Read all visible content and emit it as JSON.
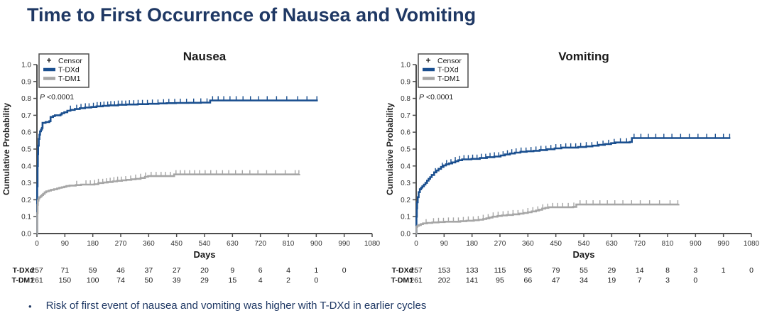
{
  "page": {
    "title": "Time to First Occurrence of Nausea and Vomiting",
    "bullet": "Risk of first event of nausea and vomiting was higher with T-DXd in earlier cycles",
    "colors": {
      "navy": "#1f3864",
      "tdxd_blue": "#1a4f8f",
      "tdm1_gray": "#a6a6a6",
      "axis": "#4d4d4d",
      "text": "#1a1a1a",
      "tick_text": "#333333"
    }
  },
  "chart_data": [
    {
      "type": "line",
      "title": "Nausea",
      "p_value": "P <0.0001",
      "xlabel": "Days",
      "ylabel": "Cumulative Probability",
      "xlim": [
        0,
        1080
      ],
      "ylim": [
        0.0,
        1.0
      ],
      "xticks": [
        0,
        90,
        180,
        270,
        360,
        450,
        540,
        630,
        720,
        810,
        900,
        990,
        1080
      ],
      "yticks": [
        "0.0",
        "0.1",
        "0.2",
        "0.3",
        "0.4",
        "0.5",
        "0.6",
        "0.7",
        "0.8",
        "0.9",
        "1.0"
      ],
      "grid": false,
      "legend_position": "upper-left",
      "legend": [
        {
          "label": "Censor",
          "marker": "+",
          "color": "text"
        },
        {
          "label": "T-DXd",
          "marker": "line",
          "color": "tdxd_blue"
        },
        {
          "label": "T-DM1",
          "marker": "line",
          "color": "tdm1_gray"
        }
      ],
      "series": [
        {
          "name": "T-DXd",
          "color": "tdxd_blue",
          "steps": [
            [
              1,
              0.28
            ],
            [
              2,
              0.4
            ],
            [
              3,
              0.47
            ],
            [
              4,
              0.52
            ],
            [
              6,
              0.56
            ],
            [
              8,
              0.585
            ],
            [
              10,
              0.605
            ],
            [
              13,
              0.615
            ],
            [
              16,
              0.625
            ],
            [
              18,
              0.655
            ],
            [
              28,
              0.66
            ],
            [
              40,
              0.665
            ],
            [
              44,
              0.69
            ],
            [
              52,
              0.695
            ],
            [
              58,
              0.7
            ],
            [
              76,
              0.705
            ],
            [
              80,
              0.712
            ],
            [
              88,
              0.718
            ],
            [
              98,
              0.727
            ],
            [
              108,
              0.732
            ],
            [
              122,
              0.737
            ],
            [
              138,
              0.742
            ],
            [
              155,
              0.746
            ],
            [
              175,
              0.749
            ],
            [
              192,
              0.753
            ],
            [
              212,
              0.756
            ],
            [
              232,
              0.759
            ],
            [
              262,
              0.762
            ],
            [
              288,
              0.764
            ],
            [
              325,
              0.766
            ],
            [
              358,
              0.768
            ],
            [
              392,
              0.77
            ],
            [
              418,
              0.772
            ],
            [
              448,
              0.773
            ],
            [
              488,
              0.774
            ],
            [
              528,
              0.775
            ],
            [
              558,
              0.788
            ],
            [
              905,
              0.788
            ]
          ],
          "censor_days": [
            108,
            128,
            142,
            156,
            168,
            182,
            194,
            205,
            216,
            228,
            238,
            250,
            262,
            274,
            286,
            298,
            312,
            326,
            340,
            356,
            372,
            390,
            408,
            425,
            444,
            462,
            482,
            505,
            528,
            548,
            566,
            584,
            602,
            622,
            642,
            664,
            688,
            714,
            742,
            772,
            805,
            840,
            870,
            902
          ]
        },
        {
          "name": "T-DM1",
          "color": "tdm1_gray",
          "steps": [
            [
              1,
              0.12
            ],
            [
              2,
              0.17
            ],
            [
              3,
              0.195
            ],
            [
              5,
              0.208
            ],
            [
              8,
              0.215
            ],
            [
              12,
              0.221
            ],
            [
              16,
              0.228
            ],
            [
              20,
              0.235
            ],
            [
              25,
              0.244
            ],
            [
              30,
              0.25
            ],
            [
              38,
              0.254
            ],
            [
              45,
              0.259
            ],
            [
              55,
              0.262
            ],
            [
              65,
              0.267
            ],
            [
              72,
              0.271
            ],
            [
              80,
              0.274
            ],
            [
              88,
              0.277
            ],
            [
              95,
              0.281
            ],
            [
              105,
              0.284
            ],
            [
              125,
              0.287
            ],
            [
              142,
              0.29
            ],
            [
              185,
              0.292
            ],
            [
              198,
              0.299
            ],
            [
              214,
              0.302
            ],
            [
              228,
              0.305
            ],
            [
              244,
              0.309
            ],
            [
              258,
              0.312
            ],
            [
              274,
              0.315
            ],
            [
              288,
              0.318
            ],
            [
              304,
              0.321
            ],
            [
              318,
              0.324
            ],
            [
              334,
              0.329
            ],
            [
              348,
              0.336
            ],
            [
              358,
              0.34
            ],
            [
              442,
              0.35
            ],
            [
              845,
              0.353
            ]
          ],
          "censor_days": [
            128,
            158,
            172,
            186,
            198,
            212,
            224,
            236,
            248,
            260,
            272,
            286,
            302,
            318,
            334,
            350,
            368,
            384,
            400,
            414,
            430,
            448,
            462,
            476,
            492,
            508,
            524,
            542,
            560,
            578,
            598,
            618,
            640,
            662,
            686,
            712,
            740,
            768,
            800,
            832,
            844
          ]
        }
      ],
      "number_at_risk": {
        "rows": [
          {
            "label": "T-DXd",
            "values": [
              257,
              71,
              59,
              46,
              37,
              27,
              20,
              9,
              6,
              4,
              1,
              0
            ]
          },
          {
            "label": "T-DM1",
            "values": [
              261,
              150,
              100,
              74,
              50,
              39,
              29,
              15,
              4,
              2,
              0
            ]
          }
        ]
      }
    },
    {
      "type": "line",
      "title": "Vomiting",
      "p_value": "P <0.0001",
      "xlabel": "Days",
      "ylabel": "Cumulative Probability",
      "xlim": [
        0,
        1080
      ],
      "ylim": [
        0.0,
        1.0
      ],
      "xticks": [
        0,
        90,
        180,
        270,
        360,
        450,
        540,
        630,
        720,
        810,
        900,
        990,
        1080
      ],
      "yticks": [
        "0.0",
        "0.1",
        "0.2",
        "0.3",
        "0.4",
        "0.5",
        "0.6",
        "0.7",
        "0.8",
        "0.9",
        "1.0"
      ],
      "grid": false,
      "legend_position": "upper-left",
      "legend": [
        {
          "label": "Censor",
          "marker": "+",
          "color": "text"
        },
        {
          "label": "T-DXd",
          "marker": "line",
          "color": "tdxd_blue"
        },
        {
          "label": "T-DM1",
          "marker": "line",
          "color": "tdm1_gray"
        }
      ],
      "series": [
        {
          "name": "T-DXd",
          "color": "tdxd_blue",
          "steps": [
            [
              1,
              0.1
            ],
            [
              2,
              0.15
            ],
            [
              3,
              0.185
            ],
            [
              5,
              0.215
            ],
            [
              8,
              0.245
            ],
            [
              12,
              0.262
            ],
            [
              16,
              0.272
            ],
            [
              20,
              0.28
            ],
            [
              25,
              0.29
            ],
            [
              30,
              0.3
            ],
            [
              35,
              0.313
            ],
            [
              40,
              0.324
            ],
            [
              45,
              0.334
            ],
            [
              50,
              0.347
            ],
            [
              58,
              0.362
            ],
            [
              65,
              0.373
            ],
            [
              72,
              0.383
            ],
            [
              80,
              0.394
            ],
            [
              88,
              0.403
            ],
            [
              96,
              0.41
            ],
            [
              106,
              0.415
            ],
            [
              116,
              0.421
            ],
            [
              126,
              0.428
            ],
            [
              136,
              0.434
            ],
            [
              148,
              0.439
            ],
            [
              178,
              0.442
            ],
            [
              205,
              0.447
            ],
            [
              228,
              0.452
            ],
            [
              252,
              0.456
            ],
            [
              272,
              0.462
            ],
            [
              286,
              0.468
            ],
            [
              302,
              0.474
            ],
            [
              318,
              0.479
            ],
            [
              336,
              0.484
            ],
            [
              356,
              0.487
            ],
            [
              378,
              0.49
            ],
            [
              398,
              0.494
            ],
            [
              422,
              0.499
            ],
            [
              446,
              0.504
            ],
            [
              468,
              0.509
            ],
            [
              522,
              0.512
            ],
            [
              548,
              0.516
            ],
            [
              568,
              0.52
            ],
            [
              588,
              0.525
            ],
            [
              608,
              0.53
            ],
            [
              628,
              0.535
            ],
            [
              642,
              0.539
            ],
            [
              688,
              0.542
            ],
            [
              695,
              0.565
            ],
            [
              1012,
              0.565
            ]
          ],
          "censor_days": [
            62,
            84,
            98,
            112,
            126,
            140,
            154,
            168,
            182,
            196,
            210,
            224,
            238,
            252,
            266,
            280,
            294,
            308,
            322,
            338,
            354,
            370,
            386,
            402,
            418,
            434,
            450,
            466,
            482,
            498,
            514,
            530,
            548,
            566,
            584,
            602,
            620,
            638,
            658,
            678,
            702,
            724,
            748,
            772,
            798,
            824,
            852,
            880,
            908,
            936,
            964,
            990,
            1010
          ]
        },
        {
          "name": "T-DM1",
          "color": "tdm1_gray",
          "steps": [
            [
              1,
              0.04
            ],
            [
              4,
              0.046
            ],
            [
              9,
              0.051
            ],
            [
              15,
              0.056
            ],
            [
              22,
              0.06
            ],
            [
              35,
              0.063
            ],
            [
              52,
              0.066
            ],
            [
              72,
              0.068
            ],
            [
              92,
              0.07
            ],
            [
              142,
              0.073
            ],
            [
              162,
              0.076
            ],
            [
              186,
              0.079
            ],
            [
              202,
              0.082
            ],
            [
              216,
              0.086
            ],
            [
              226,
              0.09
            ],
            [
              236,
              0.095
            ],
            [
              246,
              0.1
            ],
            [
              262,
              0.104
            ],
            [
              276,
              0.107
            ],
            [
              292,
              0.11
            ],
            [
              312,
              0.114
            ],
            [
              332,
              0.118
            ],
            [
              346,
              0.122
            ],
            [
              360,
              0.126
            ],
            [
              372,
              0.131
            ],
            [
              386,
              0.136
            ],
            [
              396,
              0.141
            ],
            [
              406,
              0.148
            ],
            [
              416,
              0.152
            ],
            [
              426,
              0.156
            ],
            [
              506,
              0.158
            ],
            [
              516,
              0.172
            ],
            [
              845,
              0.175
            ]
          ],
          "censor_days": [
            32,
            56,
            72,
            88,
            104,
            120,
            136,
            152,
            168,
            184,
            200,
            216,
            232,
            248,
            264,
            280,
            296,
            312,
            328,
            344,
            360,
            376,
            392,
            408,
            424,
            440,
            456,
            472,
            490,
            508,
            528,
            548,
            570,
            592,
            616,
            640,
            666,
            694,
            722,
            752,
            784,
            818,
            843
          ]
        }
      ],
      "number_at_risk": {
        "rows": [
          {
            "label": "T-DXd",
            "values": [
              257,
              153,
              133,
              115,
              95,
              79,
              55,
              29,
              14,
              8,
              3,
              1,
              0
            ]
          },
          {
            "label": "T-DM1",
            "values": [
              261,
              202,
              141,
              95,
              66,
              47,
              34,
              19,
              7,
              3,
              0
            ]
          }
        ]
      }
    }
  ]
}
